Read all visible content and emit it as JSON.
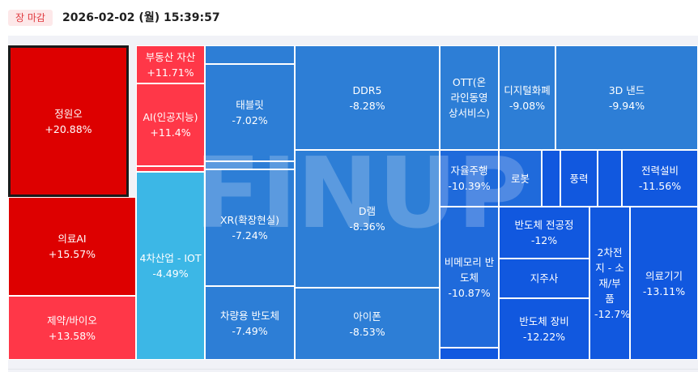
{
  "header": {
    "market_status": "장 마감",
    "timestamp": "2026-02-02 (월) 15:39:57"
  },
  "watermark": {
    "text": "FINUP"
  },
  "colors": {
    "strong_up": "#dd0000",
    "up": "#ff3748",
    "light_blue": "#3cb7e6",
    "mid_blue": "#2d7ed6",
    "deep_blue": "#1158df",
    "border": "#ffffff"
  },
  "tiles": [
    {
      "name": "정원오",
      "change": "+20.88%",
      "color": "#dd0000",
      "selected": true
    },
    {
      "name": "의료AI",
      "change": "+15.57%",
      "color": "#dd0000"
    },
    {
      "name": "제약/바이오",
      "change": "+13.58%",
      "color": "#ff3748"
    },
    {
      "name": "부동산 자산",
      "change": "+11.71%",
      "color": "#ff3748"
    },
    {
      "name": "AI(인공지능)",
      "change": "+11.4%",
      "color": "#ff3748"
    },
    {
      "name": "",
      "change": "",
      "color": "#ff3748"
    },
    {
      "name": "4차산업 - IOT",
      "change": "-4.49%",
      "color": "#3cb7e6"
    },
    {
      "name": "",
      "change": "",
      "color": "#2d7ed6"
    },
    {
      "name": "태블릿",
      "change": "-7.02%",
      "color": "#2d7ed6"
    },
    {
      "name": "",
      "change": "",
      "color": "#2d7ed6"
    },
    {
      "name": "XR(확장현실)",
      "change": "-7.24%",
      "color": "#2d7ed6"
    },
    {
      "name": "차량용 반도체",
      "change": "-7.49%",
      "color": "#2d7ed6"
    },
    {
      "name": "DDR5",
      "change": "-8.28%",
      "color": "#2d7ed6"
    },
    {
      "name": "D램",
      "change": "-8.36%",
      "color": "#2d7ed6"
    },
    {
      "name": "아이폰",
      "change": "-8.53%",
      "color": "#2d7ed6"
    },
    {
      "name": "OTT(온라인동영상서비스)",
      "change": "",
      "color": "#2d7ed6"
    },
    {
      "name": "디지털화폐",
      "change": "-9.08%",
      "color": "#2d7ed6"
    },
    {
      "name": "3D 낸드",
      "change": "-9.94%",
      "color": "#2d7ed6"
    },
    {
      "name": "자율주행",
      "change": "-10.39%",
      "color": "#1f6adb"
    },
    {
      "name": "로봇",
      "change": "",
      "color": "#1f6adb"
    },
    {
      "name": "",
      "change": "",
      "color": "#1158df"
    },
    {
      "name": "풍력",
      "change": "",
      "color": "#1158df"
    },
    {
      "name": "",
      "change": "",
      "color": "#1158df"
    },
    {
      "name": "전력설비",
      "change": "-11.56%",
      "color": "#1158df"
    },
    {
      "name": "비메모리 반도체",
      "change": "-10.87%",
      "color": "#1f6adb"
    },
    {
      "name": "",
      "change": "",
      "color": "#1158df"
    },
    {
      "name": "반도체 전공정",
      "change": "-12%",
      "color": "#1158df"
    },
    {
      "name": "지주사",
      "change": "",
      "color": "#1158df"
    },
    {
      "name": "반도체 장비",
      "change": "-12.22%",
      "color": "#1158df"
    },
    {
      "name": "2차전지 - 소재/부품",
      "change": "-12.7%",
      "color": "#1158df"
    },
    {
      "name": "의료기기",
      "change": "-13.11%",
      "color": "#1158df"
    }
  ]
}
